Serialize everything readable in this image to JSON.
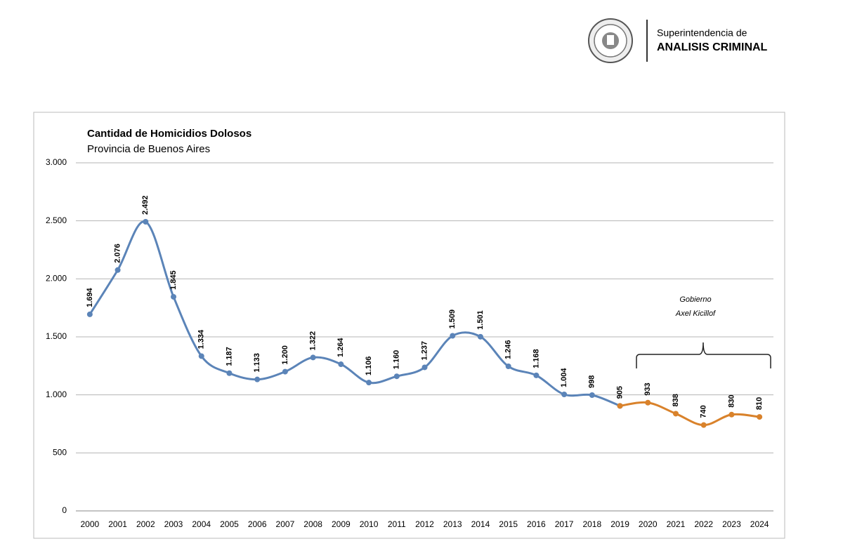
{
  "header": {
    "org_line1": "Superintendencia de",
    "org_line2": "ANALISIS CRIMINAL"
  },
  "chart_data": {
    "type": "line",
    "title": "Cantidad de Homicidios Dolosos",
    "subtitle": "Provincia de Buenos Aires",
    "annotation": [
      "Gobierno",
      "Axel Kicillof"
    ],
    "categories": [
      "2000",
      "2001",
      "2002",
      "2003",
      "2004",
      "2005",
      "2006",
      "2007",
      "2008",
      "2009",
      "2010",
      "2011",
      "2012",
      "2013",
      "2014",
      "2015",
      "2016",
      "2017",
      "2018",
      "2019",
      "2020",
      "2021",
      "2022",
      "2023",
      "2024"
    ],
    "series": [
      {
        "color": "#5b84b8",
        "values": [
          1694,
          2076,
          2492,
          1845,
          1334,
          1187,
          1133,
          1200,
          1322,
          1264,
          1106,
          1160,
          1237,
          1509,
          1501,
          1246,
          1168,
          1004,
          998,
          905,
          null,
          null,
          null,
          null,
          null
        ],
        "value_labels": [
          "1.694",
          "2.076",
          "2.492",
          "1.845",
          "1.334",
          "1.187",
          "1.133",
          "1.200",
          "1.322",
          "1.264",
          "1.106",
          "1.160",
          "1.237",
          "1.509",
          "1.501",
          "1.246",
          "1.168",
          "1.004",
          "998",
          "905",
          null,
          null,
          null,
          null,
          null
        ]
      },
      {
        "color": "#d9822b",
        "values": [
          null,
          null,
          null,
          null,
          null,
          null,
          null,
          null,
          null,
          null,
          null,
          null,
          null,
          null,
          null,
          null,
          null,
          null,
          null,
          905,
          933,
          838,
          740,
          830,
          810
        ],
        "value_labels": [
          null,
          null,
          null,
          null,
          null,
          null,
          null,
          null,
          null,
          null,
          null,
          null,
          null,
          null,
          null,
          null,
          null,
          null,
          null,
          null,
          "933",
          "838",
          "740",
          "830",
          "810"
        ]
      }
    ],
    "ylim": [
      0,
      3000
    ],
    "yticks": [
      0,
      500,
      {
        "value": 1000,
        "label": "1.000"
      },
      {
        "value": 1500,
        "label": "1.500"
      },
      {
        "value": 2000,
        "label": "2.000"
      },
      {
        "value": 2500,
        "label": "2.500"
      },
      {
        "value": 3000,
        "label": "3.000"
      }
    ],
    "grid": true
  }
}
